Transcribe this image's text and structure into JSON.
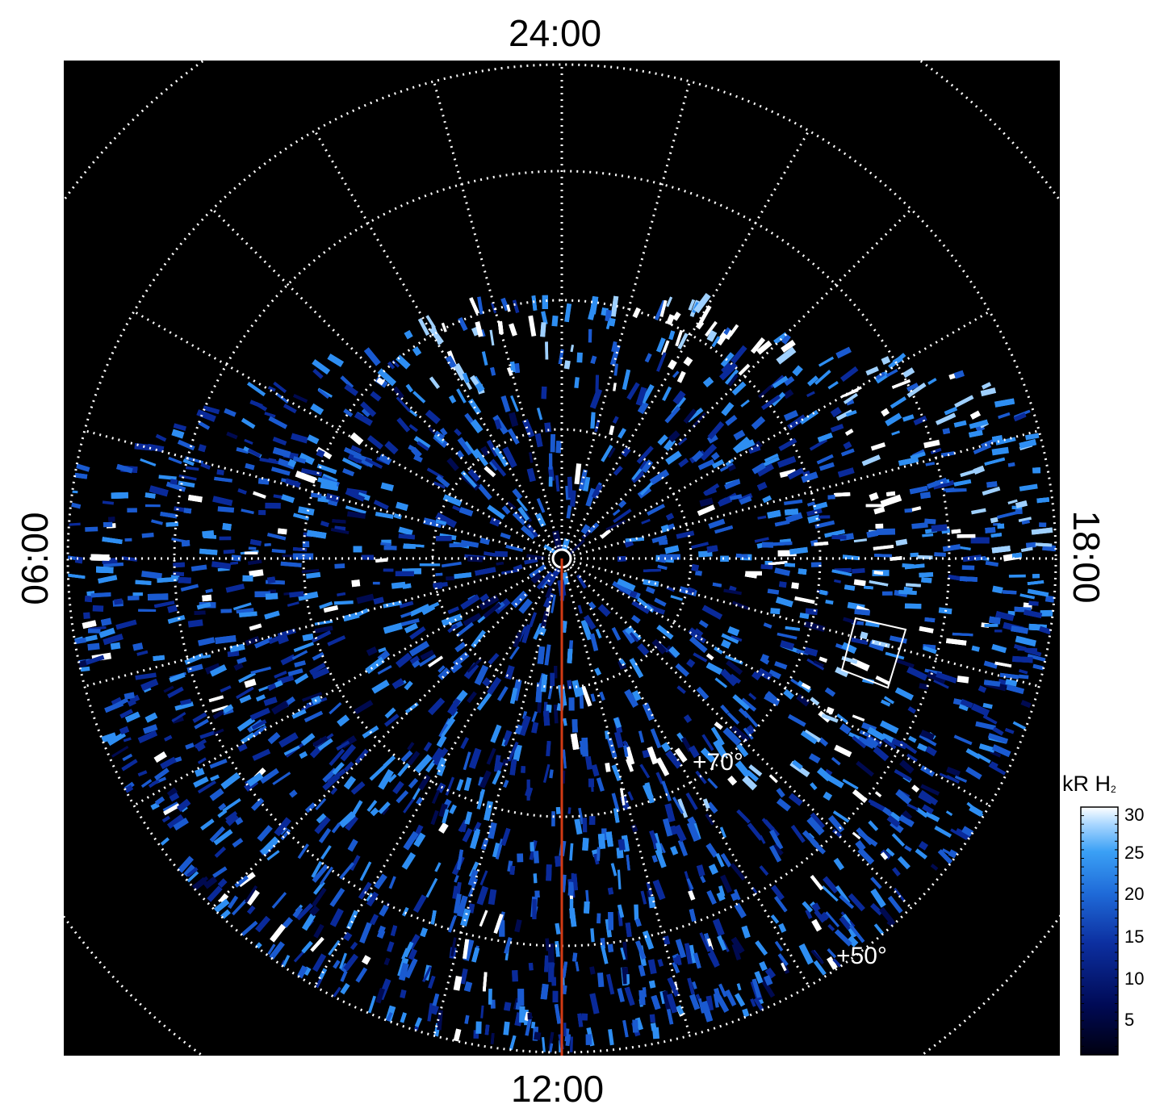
{
  "figure": {
    "type": "polar auroral projection",
    "local_time_labels": {
      "top": "24:00",
      "bottom": "12:00",
      "left": "06:00",
      "right": "18:00"
    },
    "latitude_labels": {
      "inner": "+70°",
      "outer": "+50°"
    },
    "latitude_circles_deg": [
      90,
      80,
      70,
      60,
      50,
      40
    ],
    "meridian_step_hours": 1,
    "colorbar": {
      "title": "kR H",
      "title_subscript": "2",
      "ticks": [
        "30",
        "25",
        "20",
        "15",
        "10",
        "5"
      ],
      "range": [
        1,
        30
      ]
    },
    "colors": {
      "background": "#000000",
      "grid": "#ffffff",
      "meridian_line": "#d23a14",
      "colormap": [
        "#000010",
        "#000a50",
        "#0a2a9a",
        "#1a5ad0",
        "#2e8ef2",
        "#9fd0ff",
        "#ffffff"
      ]
    }
  }
}
